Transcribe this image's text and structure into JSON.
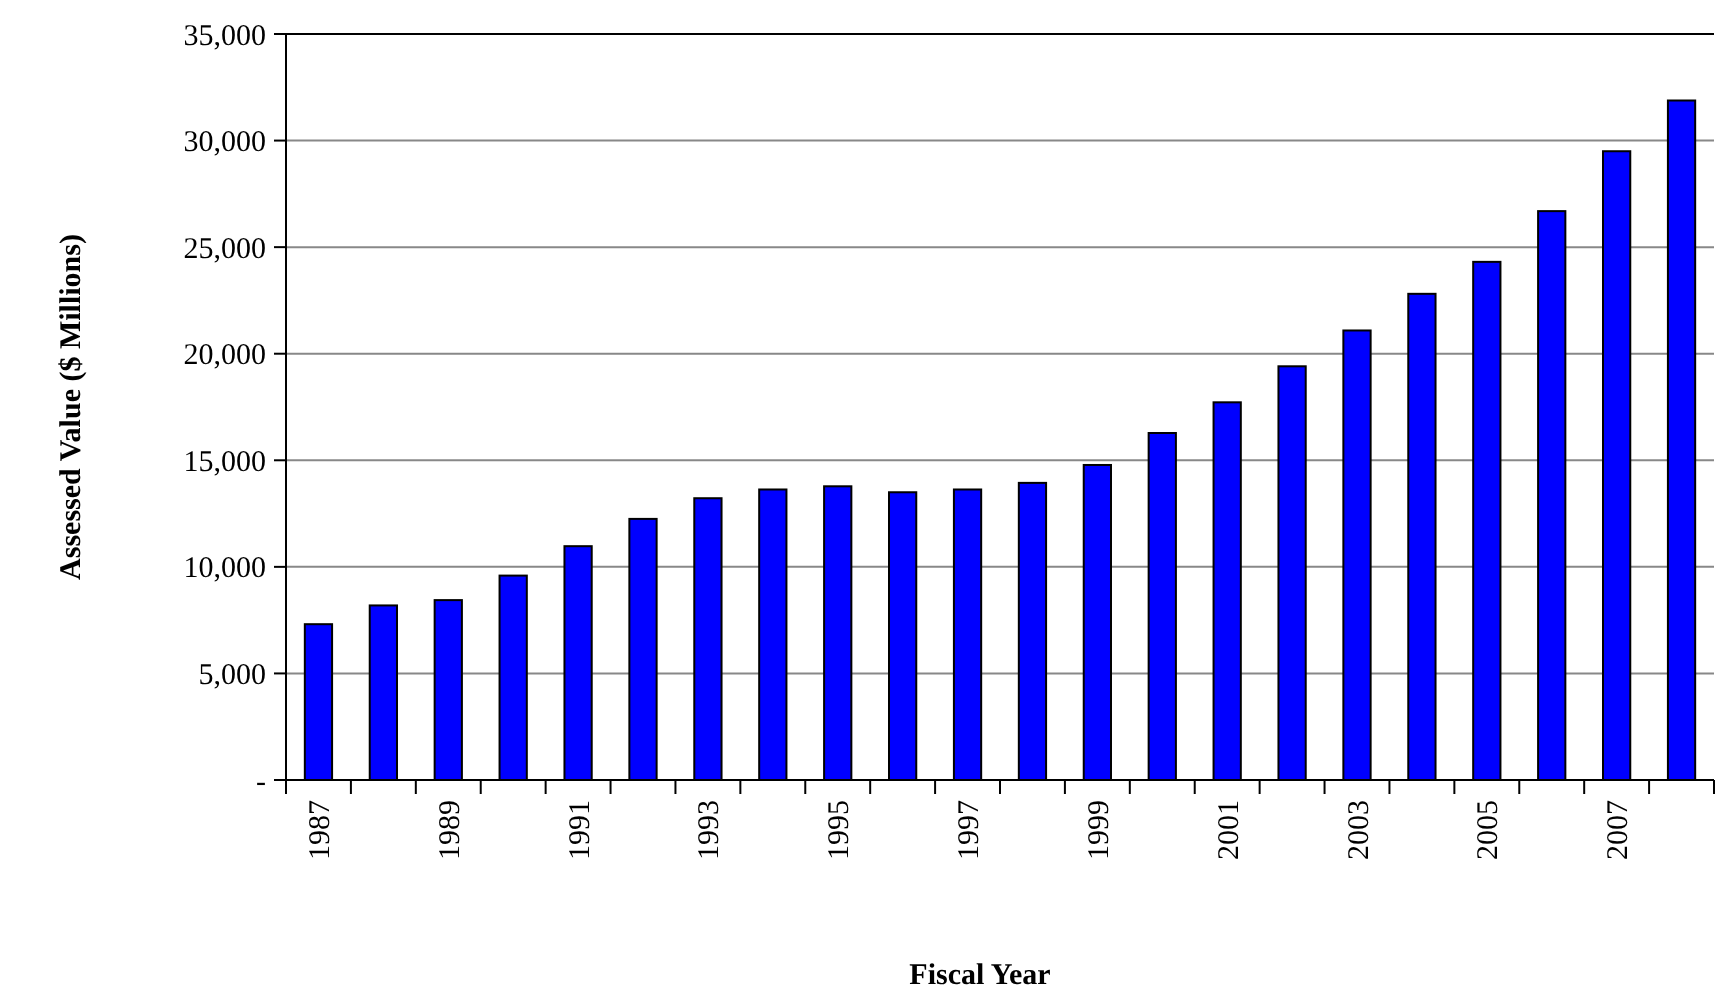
{
  "chart_data": {
    "type": "bar",
    "xlabel": "Fiscal Year",
    "ylabel": "Assessed Value ($ Millions)",
    "categories": [
      "1987",
      null,
      "1989",
      null,
      "1991",
      null,
      "1993",
      null,
      "1995",
      null,
      "1997",
      null,
      "1999",
      null,
      "2001",
      null,
      "2003",
      null,
      "2005",
      null,
      "2007",
      null
    ],
    "values": [
      7310,
      8190,
      8440,
      9590,
      10970,
      12250,
      13220,
      13630,
      13780,
      13500,
      13630,
      13940,
      14780,
      16280,
      17720,
      19410,
      21090,
      22810,
      24310,
      26690,
      29500,
      31880
    ],
    "color": "#0000ff",
    "ylim": [
      0,
      35000
    ],
    "yticks": [
      {
        "value": 0,
        "label": "-"
      },
      {
        "value": 5000,
        "label": "5,000"
      },
      {
        "value": 10000,
        "label": "10,000"
      },
      {
        "value": 15000,
        "label": "15,000"
      },
      {
        "value": 20000,
        "label": "20,000"
      },
      {
        "value": 25000,
        "label": "25,000"
      },
      {
        "value": 30000,
        "label": "30,000"
      },
      {
        "value": 35000,
        "label": "35,000"
      }
    ],
    "grid": "y"
  }
}
